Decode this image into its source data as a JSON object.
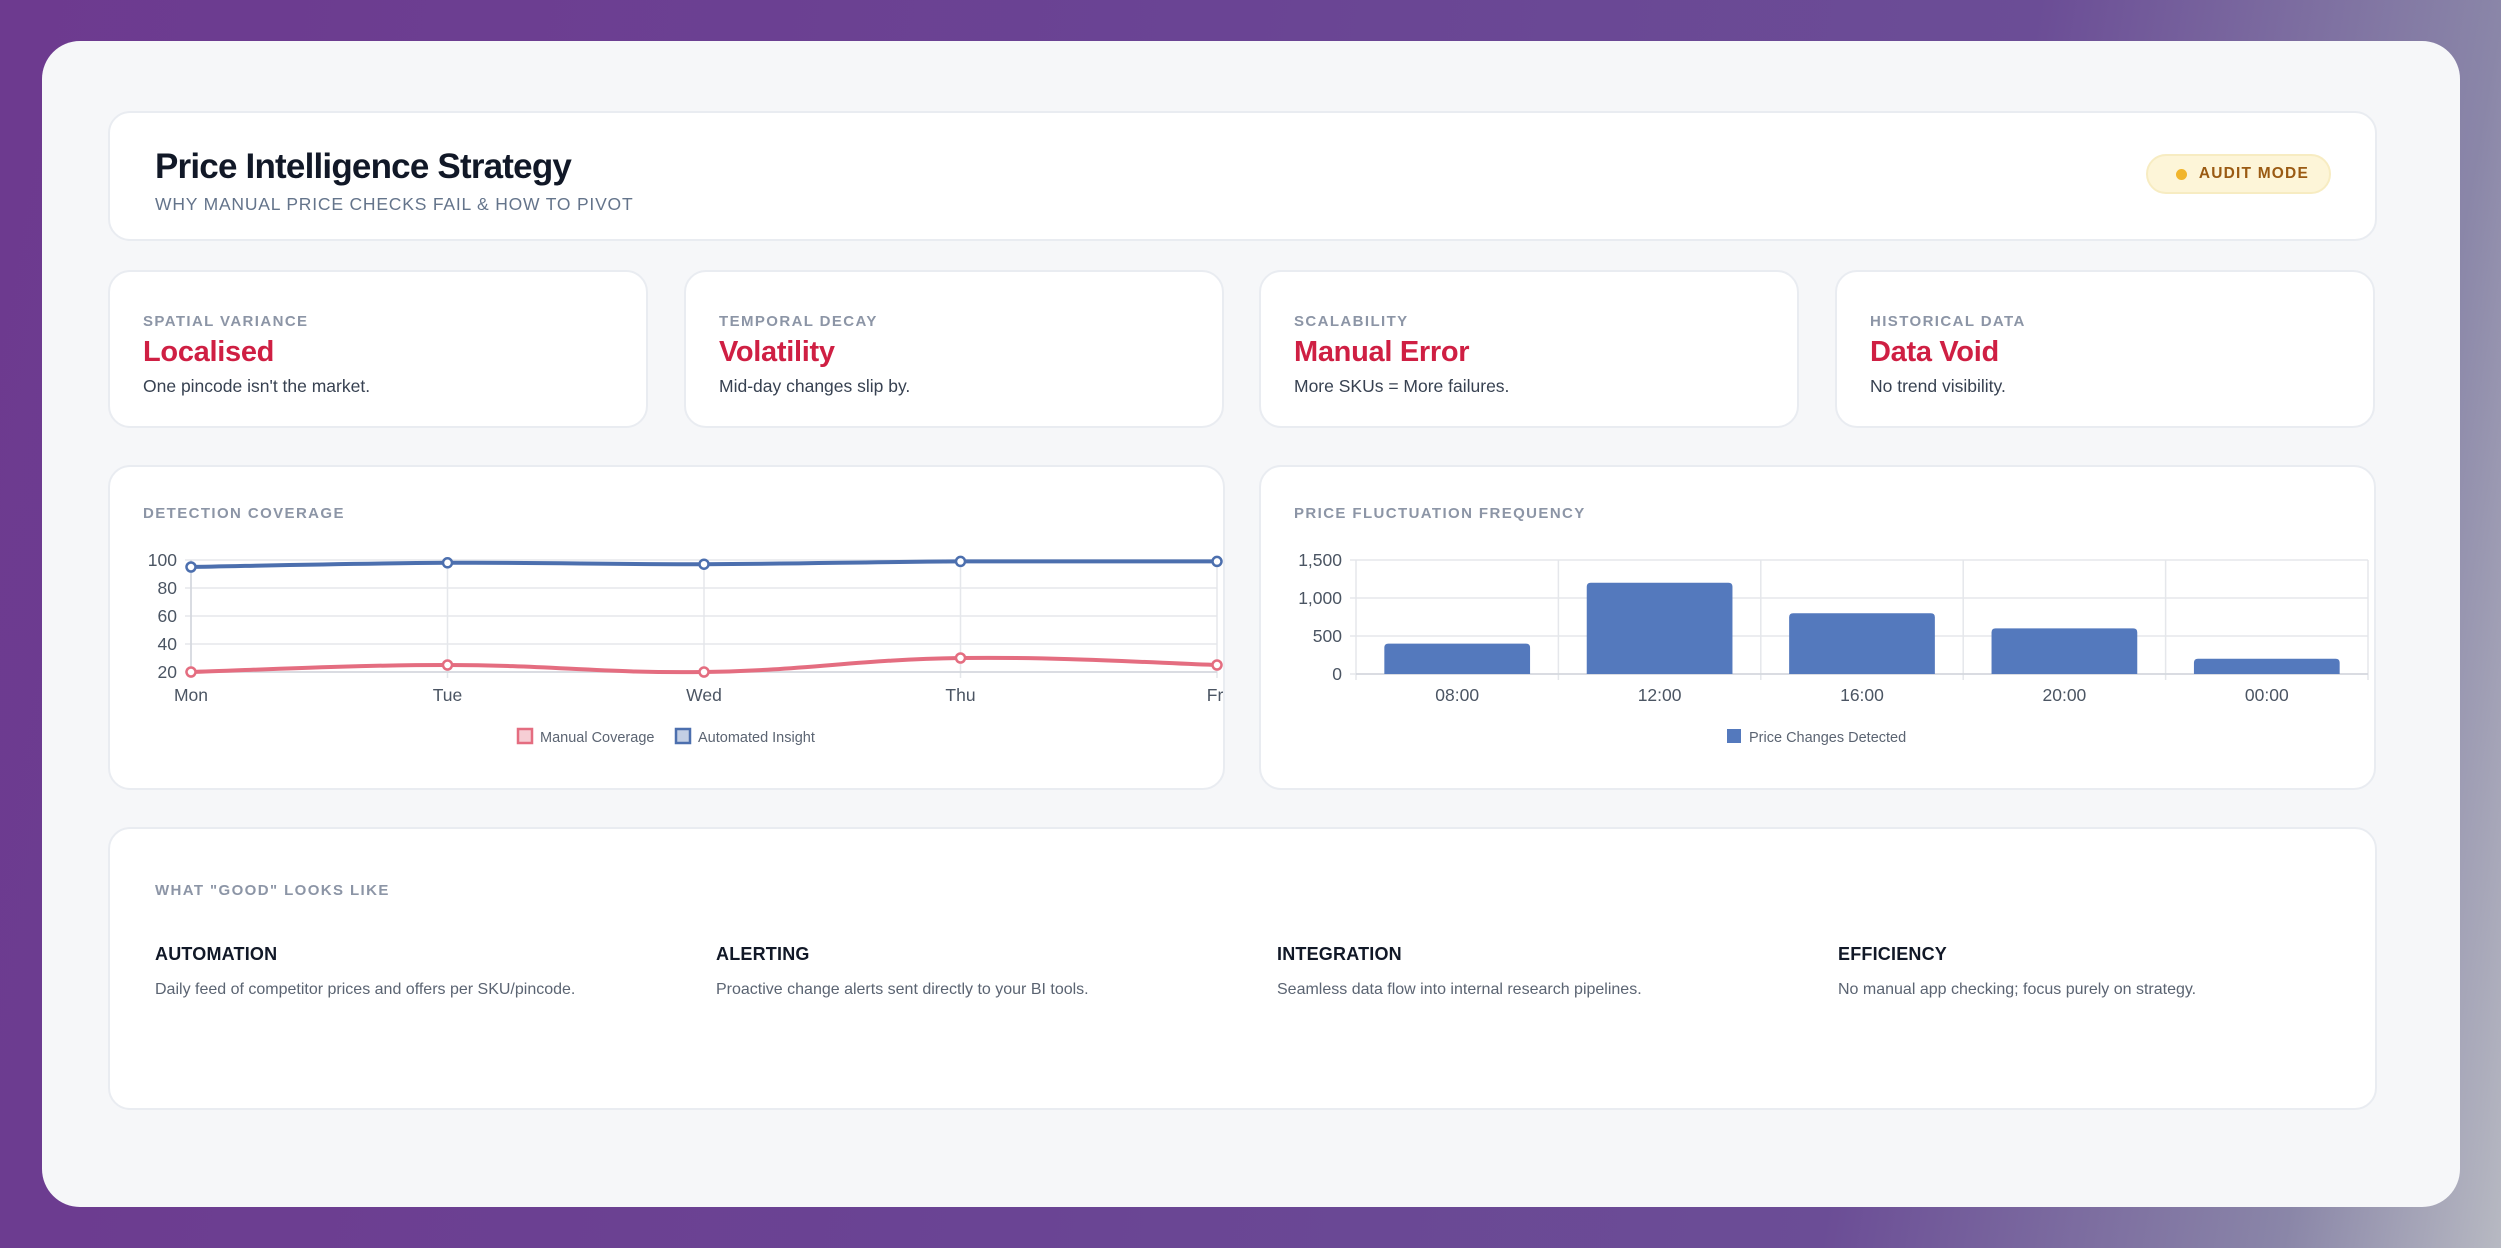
{
  "header": {
    "title": "Price Intelligence Strategy",
    "subtitle": "WHY MANUAL PRICE CHECKS FAIL & HOW TO PIVOT",
    "badge": "AUDIT MODE"
  },
  "metrics": [
    {
      "label": "SPATIAL VARIANCE",
      "value": "Localised",
      "desc": "One pincode isn't the market."
    },
    {
      "label": "TEMPORAL DECAY",
      "value": "Volatility",
      "desc": "Mid-day changes slip by."
    },
    {
      "label": "SCALABILITY",
      "value": "Manual Error",
      "desc": "More SKUs = More failures."
    },
    {
      "label": "HISTORICAL DATA",
      "value": "Data Void",
      "desc": "No trend visibility."
    }
  ],
  "colors": {
    "accent_red": "#cf1f43",
    "manual_line": "#e46d80",
    "automated_line": "#4c6fae",
    "bar_fill": "#5479bd",
    "badge_dot": "#f1b52c"
  },
  "chart_data": [
    {
      "type": "line",
      "title": "DETECTION COVERAGE",
      "categories": [
        "Mon",
        "Tue",
        "Wed",
        "Thu",
        "Fri"
      ],
      "series": [
        {
          "name": "Manual Coverage",
          "values": [
            20,
            25,
            20,
            30,
            25
          ]
        },
        {
          "name": "Automated Insight",
          "values": [
            95,
            98,
            97,
            99,
            99
          ]
        }
      ],
      "ylim": [
        20,
        100
      ],
      "yticks": [
        "100",
        "80",
        "60",
        "40",
        "20"
      ],
      "legend": "bottom",
      "grid": true
    },
    {
      "type": "bar",
      "title": "PRICE FLUCTUATION FREQUENCY",
      "categories": [
        "08:00",
        "12:00",
        "16:00",
        "20:00",
        "00:00"
      ],
      "series": [
        {
          "name": "Price Changes Detected",
          "values": [
            400,
            1200,
            800,
            600,
            200
          ]
        }
      ],
      "ylim": [
        0,
        1500
      ],
      "yticks": [
        "1,500",
        "1,000",
        "500",
        "0"
      ],
      "legend": "bottom",
      "grid": true
    }
  ],
  "good": {
    "title": "WHAT \"GOOD\" LOOKS LIKE",
    "features": [
      {
        "title": "AUTOMATION",
        "desc": "Daily feed of competitor prices and offers per SKU/pincode."
      },
      {
        "title": "ALERTING",
        "desc": "Proactive change alerts sent directly to your BI tools."
      },
      {
        "title": "INTEGRATION",
        "desc": "Seamless data flow into internal research pipelines."
      },
      {
        "title": "EFFICIENCY",
        "desc": "No manual app checking; focus purely on strategy."
      }
    ]
  }
}
